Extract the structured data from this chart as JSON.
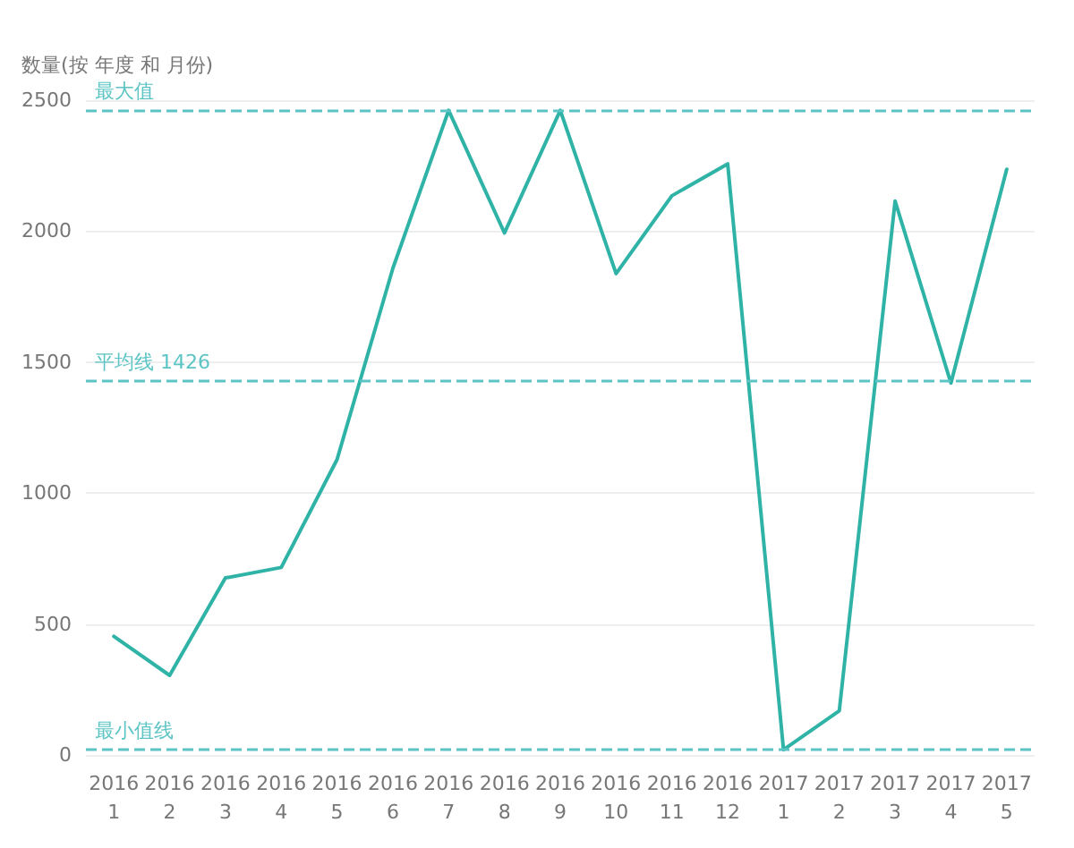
{
  "chart_data": {
    "type": "line",
    "ylabel": "数量(按 年度 和 月份)",
    "categories": [
      "2016\n1",
      "2016\n2",
      "2016\n3",
      "2016\n4",
      "2016\n5",
      "2016\n6",
      "2016\n7",
      "2016\n8",
      "2016\n9",
      "2016\n10",
      "2016\n11",
      "2016\n12",
      "2017\n1",
      "2017\n2",
      "2017\n3",
      "2017\n4",
      "2017\n5"
    ],
    "series": [
      {
        "color": "#2fb3a6",
        "values": [
          453,
          304,
          676,
          716,
          1128,
          1858,
          2461,
          1993,
          2461,
          1838,
          2135,
          2257,
          20,
          169,
          2115,
          1420,
          2236
        ]
      }
    ],
    "ylim": [
      0,
      2500
    ],
    "yticks": [
      0,
      500,
      1000,
      1500,
      2000,
      2500
    ],
    "grid": "y",
    "marker": "none",
    "line_style": "solid",
    "ref_lines": [
      {
        "axis": "y",
        "value": 2461,
        "label": "最大值",
        "color": "#5cc4c4",
        "line_style": "dashed"
      },
      {
        "axis": "y",
        "value": 1426,
        "label": "平均线 1426",
        "color": "#5cc4c4",
        "line_style": "dashed"
      },
      {
        "axis": "y",
        "value": 20,
        "label": "最小值线",
        "color": "#5cc4c4",
        "line_style": "dashed"
      }
    ]
  }
}
